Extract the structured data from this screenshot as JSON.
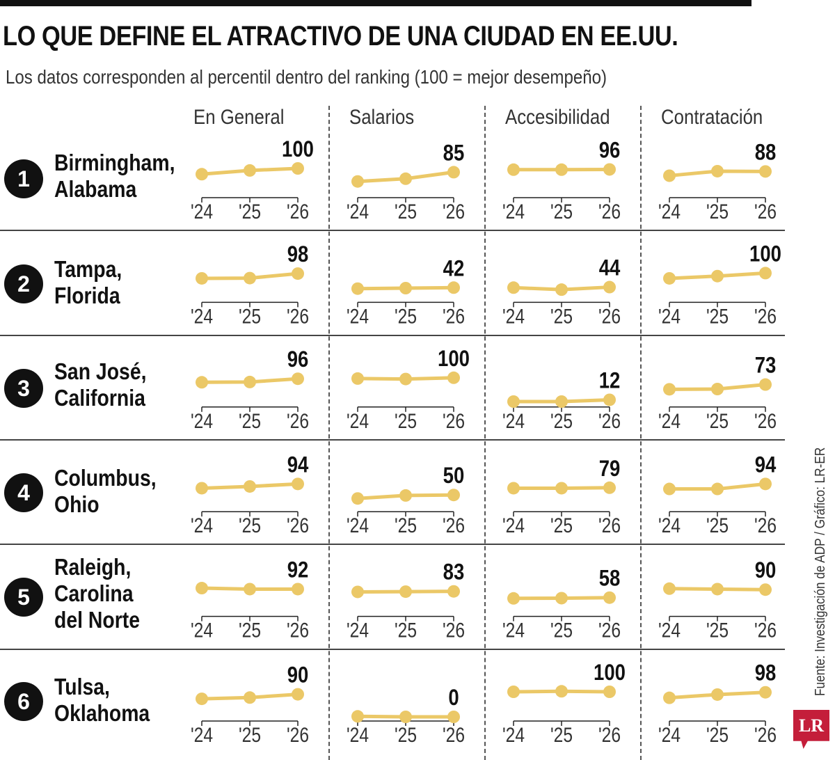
{
  "title": "LO QUE DEFINE EL ATRACTIVO DE UNA CIUDAD EN EE.UU.",
  "subtitle": "Los datos corresponden al percentil dentro del ranking (100 = mejor desempeño)",
  "columns": [
    "En General",
    "Salarios",
    "Accesibilidad",
    "Contratación"
  ],
  "rows": [
    {
      "rank": "1",
      "city": "Birmingham,\nAlabama"
    },
    {
      "rank": "2",
      "city": "Tampa,\nFlorida"
    },
    {
      "rank": "3",
      "city": "San José,\nCalifornia"
    },
    {
      "rank": "4",
      "city": "Columbus,\nOhio"
    },
    {
      "rank": "5",
      "city": "Raleigh,\nCarolina\ndel Norte"
    },
    {
      "rank": "6",
      "city": "Tulsa,\nOklahoma"
    }
  ],
  "source": "Fuente: Investigación de ADP / Gráfico: LR-ER",
  "logo_text": "LR",
  "colors": {
    "line": "#ebc867",
    "text": "#111111",
    "logo": "#c41e3a"
  },
  "chart_data": {
    "type": "line",
    "x": [
      "'24",
      "'25",
      "'26"
    ],
    "ylim": [
      0,
      100
    ],
    "panels": [
      {
        "city": "Birmingham, Alabama",
        "metrics": [
          {
            "metric": "En General",
            "values": [
              77,
              92,
              100
            ],
            "label": "100"
          },
          {
            "metric": "Salarios",
            "values": [
              48,
              59,
              85
            ],
            "label": "85"
          },
          {
            "metric": "Accesibilidad",
            "values": [
              95,
              95,
              96
            ],
            "label": "96"
          },
          {
            "metric": "Contratación",
            "values": [
              71,
              89,
              88
            ],
            "label": "88"
          }
        ]
      },
      {
        "city": "Tampa, Florida",
        "metrics": [
          {
            "metric": "En General",
            "values": [
              79,
              80,
              98
            ],
            "label": "98"
          },
          {
            "metric": "Salarios",
            "values": [
              38,
              40,
              42
            ],
            "label": "42"
          },
          {
            "metric": "Accesibilidad",
            "values": [
              42,
              34,
              44
            ],
            "label": "44"
          },
          {
            "metric": "Contratación",
            "values": [
              79,
              88,
              100
            ],
            "label": "100"
          }
        ]
      },
      {
        "city": "San José, California",
        "metrics": [
          {
            "metric": "En General",
            "values": [
              82,
              83,
              96
            ],
            "label": "96"
          },
          {
            "metric": "Salarios",
            "values": [
              97,
              95,
              100
            ],
            "label": "100"
          },
          {
            "metric": "Accesibilidad",
            "values": [
              5,
              5,
              12
            ],
            "label": "12"
          },
          {
            "metric": "Contratación",
            "values": [
              54,
              55,
              73
            ],
            "label": "73"
          }
        ]
      },
      {
        "city": "Columbus, Ohio",
        "metrics": [
          {
            "metric": "En General",
            "values": [
              77,
              84,
              94
            ],
            "label": "94"
          },
          {
            "metric": "Salarios",
            "values": [
              36,
              48,
              50
            ],
            "label": "50"
          },
          {
            "metric": "Accesibilidad",
            "values": [
              77,
              77,
              79
            ],
            "label": "79"
          },
          {
            "metric": "Contratación",
            "values": [
              74,
              74,
              94
            ],
            "label": "94"
          }
        ]
      },
      {
        "city": "Raleigh, Carolina del Norte",
        "metrics": [
          {
            "metric": "En General",
            "values": [
              96,
              92,
              92
            ],
            "label": "92"
          },
          {
            "metric": "Salarios",
            "values": [
              81,
              82,
              83
            ],
            "label": "83"
          },
          {
            "metric": "Accesibilidad",
            "values": [
              55,
              56,
              58
            ],
            "label": "58"
          },
          {
            "metric": "Contratación",
            "values": [
              94,
              92,
              90
            ],
            "label": "90"
          }
        ]
      },
      {
        "city": "Tulsa, Oklahoma",
        "metrics": [
          {
            "metric": "En General",
            "values": [
              72,
              77,
              90
            ],
            "label": "90"
          },
          {
            "metric": "Salarios",
            "values": [
              2,
              0,
              0
            ],
            "label": "0"
          },
          {
            "metric": "Accesibilidad",
            "values": [
              100,
              102,
              100
            ],
            "label": "100"
          },
          {
            "metric": "Contratación",
            "values": [
              76,
              89,
              98
            ],
            "label": "98"
          }
        ]
      }
    ]
  }
}
